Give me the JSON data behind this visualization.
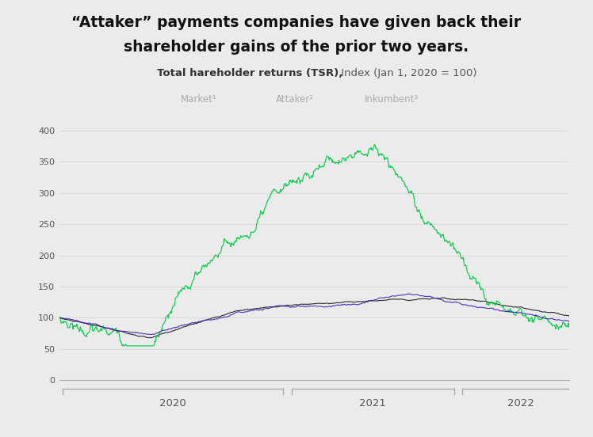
{
  "title_line1": "“Attaker” payments companies have given back their",
  "title_line2": "shareholder gains of the prior two years.",
  "subtitle_bold": "Total hareholder returns (TSR),",
  "subtitle_normal": " Index (Jan 1, 2020 = 100)",
  "legend_labels": [
    "Market¹",
    "Attaker²",
    "Inkumbent³"
  ],
  "background_color": "#ebebeb",
  "yticks": [
    0,
    50,
    100,
    150,
    200,
    250,
    300,
    350,
    400
  ],
  "ylim": [
    0,
    420
  ],
  "year_labels": [
    "2020",
    "2021",
    "2022"
  ],
  "market_color": "#1a1a1a",
  "attaker_color": "#00cc44",
  "inkumbent_color": "#4422bb",
  "date_start": "2019-09-01",
  "n_points": 780
}
